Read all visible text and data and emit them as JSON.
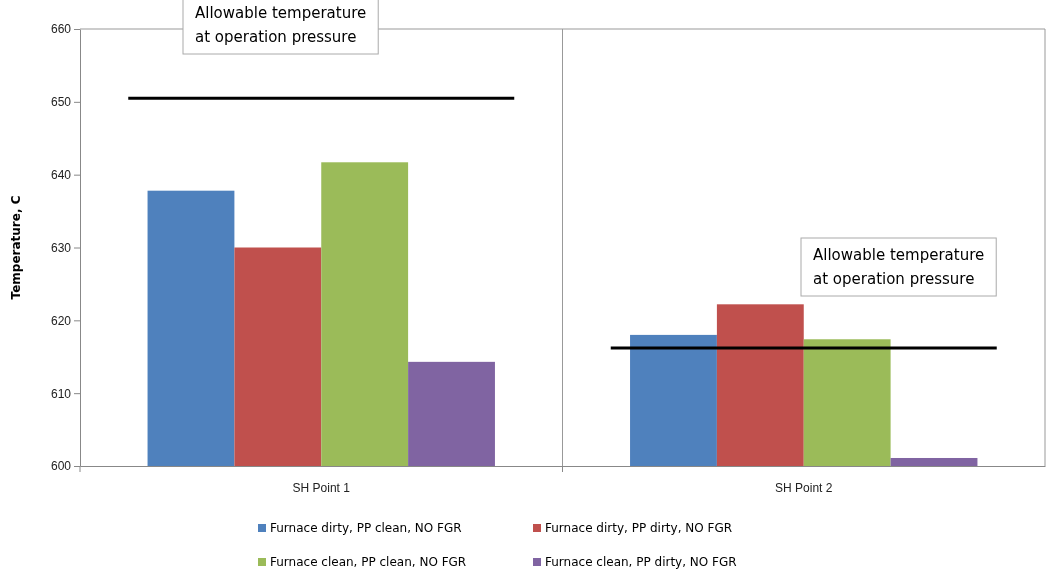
{
  "chart_data": {
    "type": "bar",
    "categories": [
      "SH Point 1",
      "SH Point 2"
    ],
    "ylabel": "Temperature, C",
    "ylim": [
      600,
      660
    ],
    "yticks": [
      600,
      610,
      620,
      630,
      640,
      650,
      660
    ],
    "grid": "x",
    "legend": "bottom",
    "series": [
      {
        "name": "Furnace dirty, PP clean, NO FGR",
        "color": "#4f81bd",
        "values": [
          637.8,
          618
        ]
      },
      {
        "name": "Furnace dirty, PP dirty, NO FGR",
        "color": "#c0504d",
        "values": [
          630,
          622.2
        ]
      },
      {
        "name": "Furnace clean, PP clean, NO FGR",
        "color": "#9bbb59",
        "values": [
          641.7,
          617.4
        ]
      },
      {
        "name": "Furnace clean, PP dirty, NO FGR",
        "color": "#8064a2",
        "values": [
          614.3,
          601.1
        ]
      }
    ],
    "ref_lines": [
      {
        "axis": "y",
        "value": 650.5,
        "color": "#000000"
      },
      {
        "axis": "y",
        "value": 616.2,
        "color": "#000000"
      }
    ],
    "annotations": [
      "Allowable temperature at operation pressure",
      "Allowable temperature at operation pressure"
    ]
  }
}
